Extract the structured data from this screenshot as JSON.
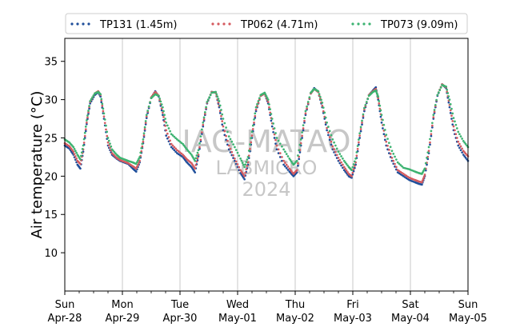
{
  "chart_data": {
    "type": "scatter",
    "ylabel": "Air temperature (°C)",
    "xlabel": "",
    "ylim": [
      5,
      38
    ],
    "xlim": [
      0,
      7
    ],
    "yticks": [
      10,
      15,
      20,
      25,
      30,
      35
    ],
    "xticks": [
      {
        "pos": 0,
        "day": "Sun",
        "date": "Apr-28"
      },
      {
        "pos": 1,
        "day": "Mon",
        "date": "Apr-29"
      },
      {
        "pos": 2,
        "day": "Tue",
        "date": "Apr-30"
      },
      {
        "pos": 3,
        "day": "Wed",
        "date": "May-01"
      },
      {
        "pos": 4,
        "day": "Thu",
        "date": "May-02"
      },
      {
        "pos": 5,
        "day": "Fri",
        "date": "May-03"
      },
      {
        "pos": 6,
        "day": "Sat",
        "date": "May-04"
      },
      {
        "pos": 7,
        "day": "Sun",
        "date": "May-05"
      }
    ],
    "grid": "vertical",
    "legend_position": "top",
    "watermark": [
      "IAG-MATAO",
      "LABMICRO",
      "2024"
    ],
    "series": [
      {
        "name": "TP131 (1.45m)",
        "color": "#1f4e9a",
        "points": [
          [
            0.0,
            24.0
          ],
          [
            0.08,
            23.6
          ],
          [
            0.15,
            22.8
          ],
          [
            0.22,
            21.5
          ],
          [
            0.27,
            21.0
          ],
          [
            0.32,
            23.2
          ],
          [
            0.38,
            26.8
          ],
          [
            0.44,
            29.5
          ],
          [
            0.52,
            30.6
          ],
          [
            0.58,
            31.0
          ],
          [
            0.62,
            30.4
          ],
          [
            0.68,
            27.5
          ],
          [
            0.75,
            24.0
          ],
          [
            0.82,
            22.8
          ],
          [
            0.9,
            22.3
          ],
          [
            0.96,
            22.0
          ],
          [
            1.03,
            21.8
          ],
          [
            1.1,
            21.6
          ],
          [
            1.18,
            21.0
          ],
          [
            1.24,
            20.6
          ],
          [
            1.3,
            21.8
          ],
          [
            1.36,
            24.3
          ],
          [
            1.42,
            27.6
          ],
          [
            1.5,
            30.2
          ],
          [
            1.57,
            31.1
          ],
          [
            1.63,
            30.4
          ],
          [
            1.7,
            28.0
          ],
          [
            1.76,
            25.3
          ],
          [
            1.85,
            23.8
          ],
          [
            1.95,
            23.0
          ],
          [
            2.05,
            22.5
          ],
          [
            2.12,
            21.8
          ],
          [
            2.2,
            21.2
          ],
          [
            2.26,
            20.5
          ],
          [
            2.32,
            22.6
          ],
          [
            2.4,
            26.5
          ],
          [
            2.47,
            29.5
          ],
          [
            2.55,
            31.0
          ],
          [
            2.62,
            30.9
          ],
          [
            2.68,
            29.0
          ],
          [
            2.75,
            26.0
          ],
          [
            2.85,
            23.5
          ],
          [
            2.95,
            22.0
          ],
          [
            3.05,
            20.4
          ],
          [
            3.12,
            19.6
          ],
          [
            3.18,
            21.5
          ],
          [
            3.25,
            25.0
          ],
          [
            3.32,
            28.5
          ],
          [
            3.4,
            30.5
          ],
          [
            3.47,
            30.8
          ],
          [
            3.53,
            29.5
          ],
          [
            3.6,
            26.5
          ],
          [
            3.68,
            23.5
          ],
          [
            3.8,
            21.5
          ],
          [
            3.9,
            20.6
          ],
          [
            3.97,
            20.0
          ],
          [
            4.03,
            20.5
          ],
          [
            4.1,
            24.0
          ],
          [
            4.18,
            28.0
          ],
          [
            4.27,
            30.8
          ],
          [
            4.33,
            31.5
          ],
          [
            4.4,
            31.0
          ],
          [
            4.47,
            29.0
          ],
          [
            4.55,
            26.0
          ],
          [
            4.65,
            23.5
          ],
          [
            4.75,
            22.0
          ],
          [
            4.85,
            20.8
          ],
          [
            4.93,
            20.0
          ],
          [
            4.98,
            19.8
          ],
          [
            5.05,
            21.5
          ],
          [
            5.12,
            25.0
          ],
          [
            5.2,
            28.5
          ],
          [
            5.28,
            30.6
          ],
          [
            5.35,
            31.2
          ],
          [
            5.4,
            31.6
          ],
          [
            5.44,
            30.0
          ],
          [
            5.5,
            27.0
          ],
          [
            5.58,
            24.0
          ],
          [
            5.68,
            22.0
          ],
          [
            5.78,
            20.5
          ],
          [
            5.88,
            20.0
          ],
          [
            5.98,
            19.5
          ],
          [
            6.08,
            19.2
          ],
          [
            6.15,
            19.0
          ],
          [
            6.2,
            18.9
          ],
          [
            6.25,
            20.0
          ],
          [
            6.32,
            23.0
          ],
          [
            6.4,
            27.5
          ],
          [
            6.47,
            30.5
          ],
          [
            6.55,
            32.0
          ],
          [
            6.62,
            31.5
          ],
          [
            6.68,
            29.0
          ],
          [
            6.75,
            26.0
          ],
          [
            6.83,
            24.0
          ],
          [
            6.92,
            22.8
          ],
          [
            7.0,
            22.0
          ]
        ]
      },
      {
        "name": "TP062 (4.71m)",
        "color": "#d45a5f",
        "points": [
          [
            0.0,
            24.3
          ],
          [
            0.08,
            23.9
          ],
          [
            0.15,
            23.2
          ],
          [
            0.22,
            22.0
          ],
          [
            0.27,
            21.6
          ],
          [
            0.32,
            23.5
          ],
          [
            0.38,
            27.0
          ],
          [
            0.44,
            29.7
          ],
          [
            0.52,
            30.8
          ],
          [
            0.58,
            31.1
          ],
          [
            0.62,
            30.6
          ],
          [
            0.68,
            27.8
          ],
          [
            0.75,
            24.4
          ],
          [
            0.82,
            23.0
          ],
          [
            0.9,
            22.4
          ],
          [
            0.96,
            22.1
          ],
          [
            1.03,
            21.9
          ],
          [
            1.1,
            21.7
          ],
          [
            1.18,
            21.3
          ],
          [
            1.24,
            21.0
          ],
          [
            1.3,
            22.0
          ],
          [
            1.36,
            24.5
          ],
          [
            1.42,
            27.8
          ],
          [
            1.5,
            30.3
          ],
          [
            1.57,
            31.0
          ],
          [
            1.63,
            30.5
          ],
          [
            1.7,
            28.3
          ],
          [
            1.76,
            26.0
          ],
          [
            1.85,
            24.2
          ],
          [
            1.95,
            23.4
          ],
          [
            2.05,
            22.8
          ],
          [
            2.12,
            22.2
          ],
          [
            2.2,
            21.7
          ],
          [
            2.26,
            21.0
          ],
          [
            2.32,
            22.8
          ],
          [
            2.4,
            26.7
          ],
          [
            2.47,
            29.6
          ],
          [
            2.55,
            31.0
          ],
          [
            2.62,
            30.9
          ],
          [
            2.68,
            29.2
          ],
          [
            2.75,
            26.5
          ],
          [
            2.85,
            24.0
          ],
          [
            2.95,
            22.3
          ],
          [
            3.05,
            20.8
          ],
          [
            3.12,
            20.0
          ],
          [
            3.18,
            21.8
          ],
          [
            3.25,
            25.3
          ],
          [
            3.32,
            28.7
          ],
          [
            3.4,
            30.5
          ],
          [
            3.47,
            30.8
          ],
          [
            3.53,
            29.7
          ],
          [
            3.6,
            26.9
          ],
          [
            3.68,
            24.0
          ],
          [
            3.8,
            22.0
          ],
          [
            3.9,
            21.0
          ],
          [
            3.97,
            20.3
          ],
          [
            4.03,
            20.8
          ],
          [
            4.1,
            24.3
          ],
          [
            4.18,
            28.2
          ],
          [
            4.27,
            30.8
          ],
          [
            4.33,
            31.4
          ],
          [
            4.4,
            31.0
          ],
          [
            4.47,
            29.2
          ],
          [
            4.55,
            26.3
          ],
          [
            4.65,
            23.9
          ],
          [
            4.75,
            22.4
          ],
          [
            4.85,
            21.2
          ],
          [
            4.93,
            20.3
          ],
          [
            4.98,
            20.0
          ],
          [
            5.05,
            21.8
          ],
          [
            5.12,
            25.3
          ],
          [
            5.2,
            28.7
          ],
          [
            5.28,
            30.6
          ],
          [
            5.35,
            31.1
          ],
          [
            5.4,
            31.4
          ],
          [
            5.44,
            30.2
          ],
          [
            5.5,
            27.4
          ],
          [
            5.58,
            24.5
          ],
          [
            5.68,
            22.4
          ],
          [
            5.78,
            20.8
          ],
          [
            5.88,
            20.3
          ],
          [
            5.98,
            19.8
          ],
          [
            6.08,
            19.5
          ],
          [
            6.15,
            19.3
          ],
          [
            6.2,
            19.2
          ],
          [
            6.25,
            20.2
          ],
          [
            6.32,
            23.3
          ],
          [
            6.4,
            27.7
          ],
          [
            6.47,
            30.6
          ],
          [
            6.55,
            32.0
          ],
          [
            6.62,
            31.6
          ],
          [
            6.68,
            29.3
          ],
          [
            6.75,
            26.5
          ],
          [
            6.83,
            24.5
          ],
          [
            6.92,
            23.3
          ],
          [
            7.0,
            22.6
          ]
        ]
      },
      {
        "name": "TP073 (9.09m)",
        "color": "#3cb371",
        "points": [
          [
            0.0,
            24.8
          ],
          [
            0.08,
            24.4
          ],
          [
            0.15,
            23.8
          ],
          [
            0.22,
            22.8
          ],
          [
            0.27,
            22.2
          ],
          [
            0.32,
            24.0
          ],
          [
            0.38,
            27.3
          ],
          [
            0.44,
            29.8
          ],
          [
            0.52,
            30.8
          ],
          [
            0.58,
            31.0
          ],
          [
            0.62,
            30.7
          ],
          [
            0.68,
            28.2
          ],
          [
            0.75,
            25.0
          ],
          [
            0.82,
            23.5
          ],
          [
            0.9,
            22.8
          ],
          [
            0.96,
            22.4
          ],
          [
            1.03,
            22.2
          ],
          [
            1.1,
            22.0
          ],
          [
            1.18,
            21.8
          ],
          [
            1.24,
            21.6
          ],
          [
            1.3,
            22.5
          ],
          [
            1.36,
            24.8
          ],
          [
            1.42,
            28.0
          ],
          [
            1.5,
            30.2
          ],
          [
            1.57,
            30.7
          ],
          [
            1.63,
            30.5
          ],
          [
            1.7,
            29.0
          ],
          [
            1.76,
            27.0
          ],
          [
            1.85,
            25.5
          ],
          [
            1.95,
            24.8
          ],
          [
            2.05,
            24.2
          ],
          [
            2.12,
            23.5
          ],
          [
            2.2,
            22.8
          ],
          [
            2.26,
            22.0
          ],
          [
            2.32,
            23.4
          ],
          [
            2.4,
            27.0
          ],
          [
            2.47,
            29.7
          ],
          [
            2.55,
            30.9
          ],
          [
            2.62,
            31.0
          ],
          [
            2.68,
            29.8
          ],
          [
            2.75,
            27.5
          ],
          [
            2.85,
            25.2
          ],
          [
            2.95,
            23.8
          ],
          [
            3.05,
            22.3
          ],
          [
            3.12,
            21.2
          ],
          [
            3.18,
            22.5
          ],
          [
            3.25,
            25.8
          ],
          [
            3.32,
            29.0
          ],
          [
            3.4,
            30.6
          ],
          [
            3.47,
            30.9
          ],
          [
            3.53,
            30.0
          ],
          [
            3.6,
            27.5
          ],
          [
            3.68,
            25.0
          ],
          [
            3.8,
            23.5
          ],
          [
            3.9,
            22.3
          ],
          [
            3.97,
            21.5
          ],
          [
            4.03,
            22.0
          ],
          [
            4.1,
            24.8
          ],
          [
            4.18,
            28.5
          ],
          [
            4.27,
            30.9
          ],
          [
            4.33,
            31.4
          ],
          [
            4.4,
            31.1
          ],
          [
            4.47,
            29.6
          ],
          [
            4.55,
            27.0
          ],
          [
            4.65,
            24.8
          ],
          [
            4.75,
            23.2
          ],
          [
            4.85,
            22.0
          ],
          [
            4.93,
            21.2
          ],
          [
            4.98,
            20.8
          ],
          [
            5.05,
            22.3
          ],
          [
            5.12,
            25.6
          ],
          [
            5.2,
            28.9
          ],
          [
            5.28,
            30.5
          ],
          [
            5.35,
            31.0
          ],
          [
            5.4,
            31.2
          ],
          [
            5.44,
            30.4
          ],
          [
            5.5,
            28.0
          ],
          [
            5.58,
            25.4
          ],
          [
            5.68,
            23.3
          ],
          [
            5.78,
            21.8
          ],
          [
            5.88,
            21.1
          ],
          [
            5.98,
            20.9
          ],
          [
            6.08,
            20.6
          ],
          [
            6.15,
            20.4
          ],
          [
            6.2,
            20.3
          ],
          [
            6.25,
            21.0
          ],
          [
            6.32,
            23.8
          ],
          [
            6.4,
            28.0
          ],
          [
            6.47,
            30.6
          ],
          [
            6.55,
            31.9
          ],
          [
            6.62,
            31.7
          ],
          [
            6.68,
            30.0
          ],
          [
            6.75,
            27.6
          ],
          [
            6.83,
            25.8
          ],
          [
            6.92,
            24.6
          ],
          [
            7.0,
            23.8
          ]
        ]
      }
    ]
  }
}
